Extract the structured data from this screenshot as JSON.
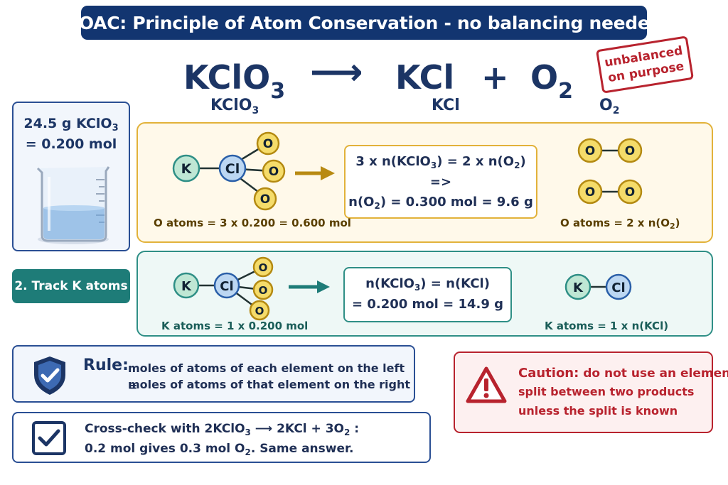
{
  "title": "POAC: Principle of Atom Conservation - no balancing needed",
  "equation": {
    "reactant": "KClO",
    "reactant_sub": "3",
    "arrow": "⟶",
    "product1": "KCl",
    "plus": "+",
    "product2": "O",
    "product2_sub": "2"
  },
  "stamp": {
    "line1": "unbalanced",
    "line2": "on purpose"
  },
  "columns": {
    "left": "KClO",
    "left_sub": "3",
    "middle": "KCl",
    "right": "O",
    "right_sub": "2"
  },
  "mass_box": {
    "line1_pre": "24.5 g KClO",
    "line1_sub": "3",
    "line2": "= 0.200 mol",
    "icon": "beaker-icon"
  },
  "panel_o": {
    "atoms": {
      "k": "K",
      "cl": "Cl",
      "o": "O"
    },
    "eq_line1_pre": "3 x n(KClO",
    "eq_line1_sub1": "3",
    "eq_line1_mid": ") = 2 x n(O",
    "eq_line1_sub2": "2",
    "eq_line1_post": ")",
    "eq_line2": "=>",
    "eq_line3_pre": "n(O",
    "eq_line3_sub": "2",
    "eq_line3_post": ") = 0.300 mol = 9.6 g",
    "left_caption": "O atoms = 3 x 0.200 = 0.600 mol",
    "right_caption_pre": "O atoms = 2 x n(O",
    "right_caption_sub": "2",
    "right_caption_post": ")"
  },
  "panel_k": {
    "label": "2. Track K atoms",
    "atoms": {
      "k": "K",
      "cl": "Cl",
      "o": "O"
    },
    "eq_line1_pre": "n(KClO",
    "eq_line1_sub": "3",
    "eq_line1_post": ") = n(KCl)",
    "eq_line2": "= 0.200 mol = 14.9 g",
    "left_caption": "K atoms = 1 x 0.200 mol",
    "right_caption": "K atoms = 1 x n(KCl)"
  },
  "rule": {
    "label": "Rule:",
    "line1": "moles of atoms of each element on the left =",
    "line2": "moles of atoms of that element on the right",
    "icon": "shield-check-icon"
  },
  "cross_check": {
    "line1_pre": "Cross-check with 2KClO",
    "line1_sub": "3",
    "line1_mid": " ⟶ 2KCl + 3O",
    "line1_sub2": "2",
    "line1_post": " :",
    "line2_pre": "0.2 mol gives 0.3 mol O",
    "line2_sub": "2",
    "line2_post": ". Same answer.",
    "icon": "checkbox-checked-icon"
  },
  "caution": {
    "label": "Caution:",
    "line1": "do not use an element",
    "line2": "split between two products",
    "line3": "unless the split is known",
    "icon": "warning-triangle-icon"
  },
  "colors": {
    "navy": "#123570",
    "gold": "#e2b23a",
    "teal": "#2f8f86",
    "red": "#b8232e",
    "k_atom": "#bfe7d4",
    "cl_atom": "#bcd7f2",
    "o_atom": "#f5dc6a"
  }
}
